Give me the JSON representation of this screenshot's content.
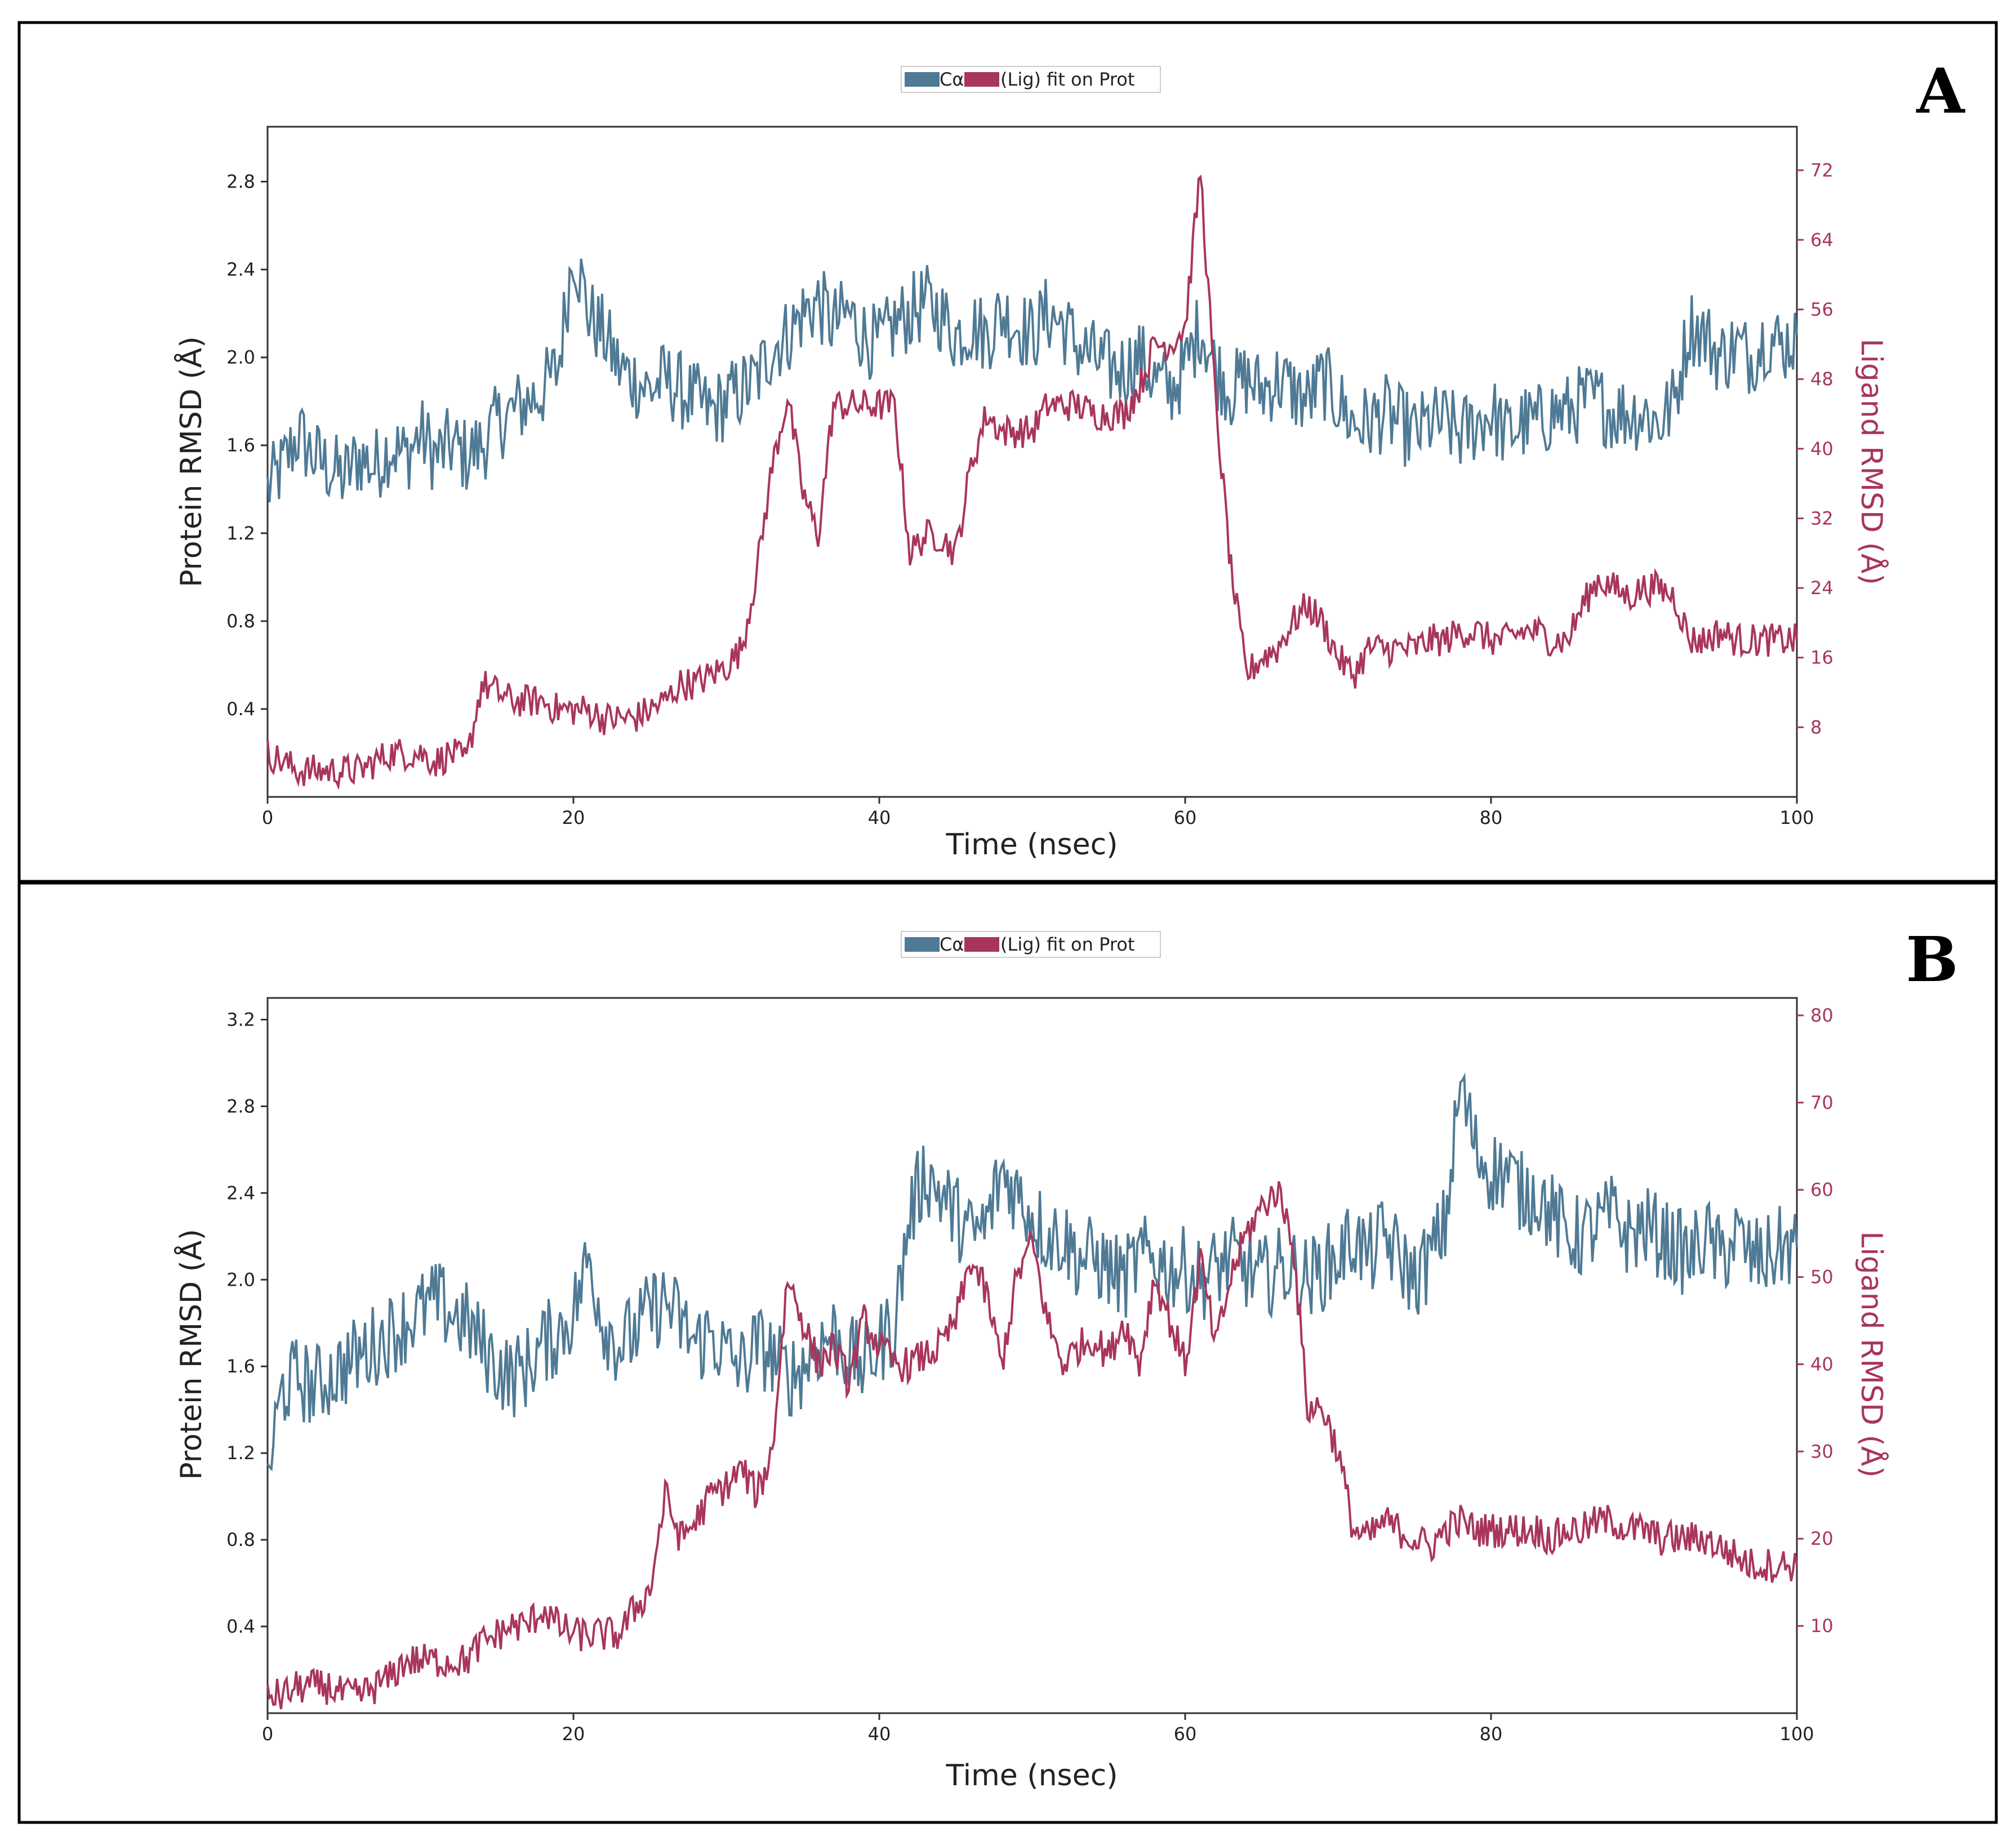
{
  "colors": {
    "protein": "#4f7a95",
    "ligand": "#a8365a",
    "axis": "#333333",
    "border": "#000000"
  },
  "chart_data": [
    {
      "panel_label": "A",
      "type": "line",
      "legend": {
        "protein": "Cα",
        "ligand": "(Lig) fit on Prot",
        "placement": "top-center"
      },
      "xlabel": "Time (nsec)",
      "ylabel_left": "Protein RMSD (Å)",
      "ylabel_right": "Ligand RMSD (Å)",
      "xlim": [
        0,
        100
      ],
      "ylim_left": [
        0.0,
        3.05
      ],
      "ylim_right": [
        0,
        77
      ],
      "x_ticks": [
        "0",
        "20",
        "40",
        "60",
        "80",
        "100"
      ],
      "y_ticks_left": [
        "0.4",
        "0.8",
        "1.2",
        "1.6",
        "2.0",
        "2.4",
        "2.8"
      ],
      "y_ticks_right": [
        "8",
        "16",
        "24",
        "32",
        "40",
        "48",
        "56",
        "64",
        "72"
      ],
      "series": [
        {
          "name": "Cα",
          "axis": "left",
          "x": [
            0,
            1,
            2,
            3,
            4,
            5,
            6,
            7,
            8,
            9,
            10,
            11,
            12,
            13,
            14,
            15,
            16,
            17,
            18,
            19,
            20,
            21,
            22,
            23,
            24,
            25,
            26,
            27,
            28,
            29,
            30,
            31,
            32,
            33,
            34,
            35,
            36,
            37,
            38,
            39,
            40,
            41,
            42,
            43,
            44,
            45,
            46,
            47,
            48,
            49,
            50,
            51,
            52,
            53,
            54,
            55,
            56,
            57,
            58,
            59,
            60,
            61,
            62,
            63,
            64,
            65,
            66,
            67,
            68,
            69,
            70,
            71,
            72,
            73,
            74,
            75,
            76,
            77,
            78,
            79,
            80,
            81,
            82,
            83,
            84,
            85,
            86,
            87,
            88,
            89,
            90,
            91,
            92,
            93,
            94,
            95,
            96,
            97,
            98,
            99,
            100
          ],
          "values": [
            1.4,
            1.5,
            1.65,
            1.55,
            1.5,
            1.45,
            1.55,
            1.5,
            1.6,
            1.55,
            1.65,
            1.55,
            1.6,
            1.55,
            1.6,
            1.7,
            1.75,
            1.8,
            1.85,
            1.95,
            2.5,
            2.2,
            2.1,
            1.95,
            1.9,
            1.85,
            1.9,
            1.85,
            1.8,
            1.75,
            1.8,
            1.85,
            1.9,
            2.05,
            2.1,
            2.2,
            2.25,
            2.15,
            2.2,
            2.1,
            2.05,
            2.15,
            2.2,
            2.25,
            2.2,
            2.1,
            2.15,
            2.1,
            2.2,
            2.15,
            2.1,
            2.2,
            2.15,
            2.05,
            2.0,
            1.95,
            1.95,
            2.0,
            1.9,
            1.85,
            1.95,
            2.15,
            1.95,
            1.85,
            1.9,
            1.85,
            1.9,
            1.85,
            1.8,
            1.9,
            1.8,
            1.7,
            1.7,
            1.75,
            1.7,
            1.65,
            1.7,
            1.7,
            1.65,
            1.7,
            1.75,
            1.65,
            1.7,
            1.7,
            1.75,
            1.75,
            1.8,
            1.8,
            1.75,
            1.75,
            1.75,
            1.7,
            1.8,
            2.15,
            2.1,
            2.0,
            2.05,
            2.0,
            2.1,
            2.05,
            2.1
          ]
        },
        {
          "name": "(Lig) fit on Prot",
          "axis": "right",
          "x": [
            0,
            1,
            2,
            3,
            4,
            5,
            6,
            7,
            8,
            9,
            10,
            11,
            12,
            13,
            14,
            15,
            16,
            17,
            18,
            19,
            20,
            21,
            22,
            23,
            24,
            25,
            26,
            27,
            28,
            29,
            30,
            31,
            32,
            33,
            34,
            35,
            36,
            37,
            38,
            39,
            40,
            41,
            42,
            43,
            44,
            45,
            46,
            47,
            48,
            49,
            50,
            51,
            52,
            53,
            54,
            55,
            56,
            57,
            58,
            59,
            60,
            61,
            62,
            63,
            64,
            65,
            66,
            67,
            68,
            69,
            70,
            71,
            72,
            73,
            74,
            75,
            76,
            77,
            78,
            79,
            80,
            81,
            82,
            83,
            84,
            85,
            86,
            87,
            88,
            89,
            90,
            91,
            92,
            93,
            94,
            95,
            96,
            97,
            98,
            99,
            100
          ],
          "values": [
            5,
            4,
            3,
            3,
            3,
            3,
            3,
            4,
            5,
            5,
            5,
            4,
            5,
            4,
            13,
            12,
            11,
            11,
            11,
            10,
            10,
            10,
            9,
            9,
            9,
            10,
            11,
            13,
            13,
            14,
            15,
            17,
            26,
            38,
            46,
            35,
            30,
            45,
            45,
            45,
            45,
            45,
            28,
            30,
            30,
            28,
            38,
            44,
            42,
            42,
            42,
            45,
            45,
            45,
            44,
            44,
            44,
            47,
            52,
            52,
            54,
            72,
            45,
            26,
            14,
            16,
            17,
            20,
            22,
            20,
            16,
            14,
            17,
            17,
            17,
            17,
            18,
            18,
            19,
            19,
            18,
            18,
            19,
            19,
            18,
            18,
            22,
            25,
            24,
            23,
            24,
            24,
            23,
            18,
            18,
            19,
            18,
            18,
            18,
            18,
            18
          ]
        }
      ]
    },
    {
      "panel_label": "B",
      "type": "line",
      "legend": {
        "protein": "Cα",
        "ligand": "(Lig) fit on Prot",
        "placement": "top-center"
      },
      "xlabel": "Time (nsec)",
      "ylabel_left": "Protein RMSD (Å)",
      "ylabel_right": "Ligand RMSD (Å)",
      "xlim": [
        0,
        100
      ],
      "ylim_left": [
        0.0,
        3.3
      ],
      "ylim_right": [
        0,
        82
      ],
      "x_ticks": [
        "0",
        "20",
        "40",
        "60",
        "80",
        "100"
      ],
      "y_ticks_left": [
        "0.4",
        "0.8",
        "1.2",
        "1.6",
        "2.0",
        "2.4",
        "2.8",
        "3.2"
      ],
      "y_ticks_right": [
        "10",
        "20",
        "30",
        "40",
        "50",
        "60",
        "70",
        "80"
      ],
      "series": [
        {
          "name": "Cα",
          "axis": "left",
          "x": [
            0,
            1,
            2,
            3,
            4,
            5,
            6,
            7,
            8,
            9,
            10,
            11,
            12,
            13,
            14,
            15,
            16,
            17,
            18,
            19,
            20,
            21,
            22,
            23,
            24,
            25,
            26,
            27,
            28,
            29,
            30,
            31,
            32,
            33,
            34,
            35,
            36,
            37,
            38,
            39,
            40,
            41,
            42,
            43,
            44,
            45,
            46,
            47,
            48,
            49,
            50,
            51,
            52,
            53,
            54,
            55,
            56,
            57,
            58,
            59,
            60,
            61,
            62,
            63,
            64,
            65,
            66,
            67,
            68,
            69,
            70,
            71,
            72,
            73,
            74,
            75,
            76,
            77,
            78,
            79,
            80,
            81,
            82,
            83,
            84,
            85,
            86,
            87,
            88,
            89,
            90,
            91,
            92,
            93,
            94,
            95,
            96,
            97,
            98,
            99,
            100
          ],
          "values": [
            1.1,
            1.5,
            1.55,
            1.5,
            1.55,
            1.6,
            1.65,
            1.7,
            1.75,
            1.8,
            1.85,
            1.9,
            1.85,
            1.8,
            1.7,
            1.6,
            1.55,
            1.6,
            1.7,
            1.75,
            1.85,
            2.1,
            1.8,
            1.7,
            1.75,
            1.85,
            1.9,
            1.8,
            1.7,
            1.75,
            1.65,
            1.6,
            1.7,
            1.65,
            1.55,
            1.6,
            1.7,
            1.75,
            1.65,
            1.6,
            1.7,
            1.8,
            2.3,
            2.5,
            2.4,
            2.3,
            2.2,
            2.25,
            2.5,
            2.4,
            2.3,
            2.2,
            2.2,
            2.1,
            2.1,
            2.05,
            2.0,
            2.1,
            2.1,
            2.05,
            2.05,
            2.0,
            2.05,
            2.1,
            2.05,
            2.0,
            2.05,
            2.05,
            2.0,
            2.05,
            2.1,
            2.2,
            2.1,
            2.2,
            2.1,
            2.0,
            2.1,
            2.25,
            2.9,
            2.6,
            2.5,
            2.5,
            2.4,
            2.4,
            2.3,
            2.2,
            2.2,
            2.25,
            2.3,
            2.2,
            2.25,
            2.2,
            2.15,
            2.1,
            2.2,
            2.1,
            2.2,
            2.1,
            2.1,
            2.15,
            2.15
          ]
        },
        {
          "name": "(Lig) fit on Prot",
          "axis": "right",
          "x": [
            0,
            1,
            2,
            3,
            4,
            5,
            6,
            7,
            8,
            9,
            10,
            11,
            12,
            13,
            14,
            15,
            16,
            17,
            18,
            19,
            20,
            21,
            22,
            23,
            24,
            25,
            26,
            27,
            28,
            29,
            30,
            31,
            32,
            33,
            34,
            35,
            36,
            37,
            38,
            39,
            40,
            41,
            42,
            43,
            44,
            45,
            46,
            47,
            48,
            49,
            50,
            51,
            52,
            53,
            54,
            55,
            56,
            57,
            58,
            59,
            60,
            61,
            62,
            63,
            64,
            65,
            66,
            67,
            68,
            69,
            70,
            71,
            72,
            73,
            74,
            75,
            76,
            77,
            78,
            79,
            80,
            81,
            82,
            83,
            84,
            85,
            86,
            87,
            88,
            89,
            90,
            91,
            92,
            93,
            94,
            95,
            96,
            97,
            98,
            99,
            100
          ],
          "values": [
            2,
            2,
            3,
            3,
            3,
            2,
            2,
            3,
            4,
            6,
            6,
            6,
            6,
            6,
            8,
            9,
            10,
            10,
            12,
            10,
            9,
            9,
            9,
            9,
            12,
            14,
            25,
            20,
            22,
            25,
            26,
            28,
            25,
            30,
            50,
            45,
            40,
            42,
            38,
            45,
            42,
            40,
            40,
            41,
            42,
            45,
            52,
            48,
            40,
            50,
            54,
            45,
            40,
            42,
            43,
            41,
            45,
            40,
            50,
            45,
            40,
            52,
            42,
            50,
            55,
            58,
            60,
            55,
            35,
            35,
            30,
            21,
            20,
            22,
            21,
            20,
            19,
            21,
            22,
            21,
            21,
            21,
            21,
            21,
            20,
            21,
            21,
            22,
            22,
            21,
            21,
            20,
            20,
            20,
            20,
            19,
            18,
            17,
            17,
            17,
            17
          ]
        }
      ]
    }
  ]
}
